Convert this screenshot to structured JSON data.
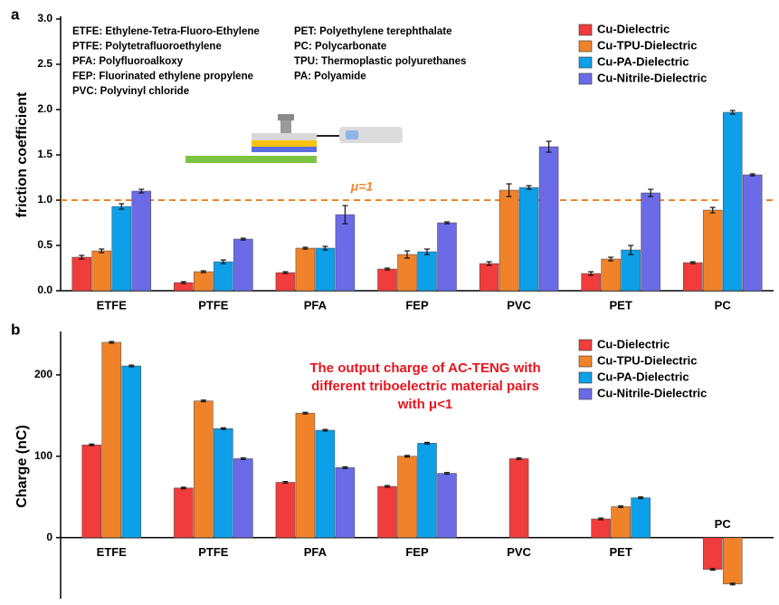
{
  "chart_data": [
    {
      "type": "bar",
      "panel_label": "a",
      "y_label": "friction coefficient",
      "categories": [
        "ETFE",
        "PTFE",
        "PFA",
        "FEP",
        "PVC",
        "PET",
        "PC"
      ],
      "series": [
        {
          "name": "Cu-Dielectric",
          "color": "#f03c3c",
          "values": [
            0.37,
            0.09,
            0.2,
            0.24,
            0.3,
            0.19,
            0.31
          ],
          "errors": [
            0.02,
            0.01,
            0.01,
            0.01,
            0.02,
            0.02,
            0.01
          ]
        },
        {
          "name": "Cu-TPU-Dielectric",
          "color": "#f0832a",
          "values": [
            0.44,
            0.21,
            0.47,
            0.4,
            1.11,
            0.35,
            0.89
          ],
          "errors": [
            0.02,
            0.01,
            0.01,
            0.04,
            0.07,
            0.02,
            0.03
          ]
        },
        {
          "name": "Cu-PA-Dielectric",
          "color": "#0d9fe8",
          "values": [
            0.93,
            0.32,
            0.47,
            0.43,
            1.14,
            0.45,
            1.97
          ],
          "errors": [
            0.03,
            0.02,
            0.02,
            0.03,
            0.02,
            0.05,
            0.02
          ]
        },
        {
          "name": "Cu-Nitrile-Dielectric",
          "color": "#6b6be8",
          "values": [
            1.1,
            0.57,
            0.84,
            0.75,
            1.59,
            1.08,
            1.28
          ],
          "errors": [
            0.02,
            0.01,
            0.1,
            0.01,
            0.06,
            0.04,
            0.01
          ]
        }
      ],
      "ylim": [
        0,
        3.0
      ],
      "yticks": [
        {
          "value": 0,
          "label": "0.0"
        },
        0.5,
        {
          "value": 1,
          "label": "1.0"
        },
        1.5,
        {
          "value": 2,
          "label": "2.0"
        },
        2.5,
        {
          "value": 3,
          "label": "3.0"
        }
      ],
      "reference_line": {
        "value": 1,
        "label": "μ=1",
        "color": "#f0832a"
      },
      "legend_position": "top-right",
      "notes": [
        "ETFE: Ethylene-Tetra-Fluoro-Ethylene",
        "PTFE: Polytetrafluoroethylene",
        "PFA: Polyfluoroalkoxy",
        "FEP: Fluorinated ethylene propylene",
        "PVC: Polyvinyl chloride",
        "PET: Polyethylene terephthalate",
        "PC: Polycarbonate",
        "TPU: Thermoplastic polyurethanes",
        "PA: Polyamide"
      ]
    },
    {
      "type": "bar",
      "panel_label": "b",
      "y_label": "Charge (nC)",
      "categories": [
        "ETFE",
        "PTFE",
        "PFA",
        "FEP",
        "PVC",
        "PET",
        "PC"
      ],
      "series": [
        {
          "name": "Cu-Dielectric",
          "color": "#f03c3c",
          "values": [
            114,
            61,
            68,
            63,
            97,
            23,
            -39
          ],
          "errors": [
            1,
            1,
            1,
            1,
            1,
            1,
            1
          ]
        },
        {
          "name": "Cu-TPU-Dielectric",
          "color": "#f0832a",
          "values": [
            240,
            168,
            153,
            100,
            null,
            38,
            -57
          ],
          "errors": [
            1,
            1,
            1,
            1,
            null,
            1,
            1
          ]
        },
        {
          "name": "Cu-PA-Dielectric",
          "color": "#0d9fe8",
          "values": [
            211,
            134,
            132,
            116,
            null,
            49,
            null
          ],
          "errors": [
            1,
            1,
            1,
            1,
            null,
            1,
            null
          ]
        },
        {
          "name": "Cu-Nitrile-Dielectric",
          "color": "#6b6be8",
          "values": [
            null,
            97,
            86,
            79,
            null,
            null,
            null
          ],
          "errors": [
            null,
            1,
            1,
            1,
            null,
            null,
            null
          ]
        }
      ],
      "ylim": [
        -75,
        250
      ],
      "yticks": [
        0,
        100,
        200
      ],
      "legend_position": "top-right",
      "annotation": {
        "lines": [
          "The output charge of AC-TENG with",
          "different triboelectric material pairs",
          "with μ<1"
        ],
        "color": "#e8141e"
      }
    }
  ]
}
